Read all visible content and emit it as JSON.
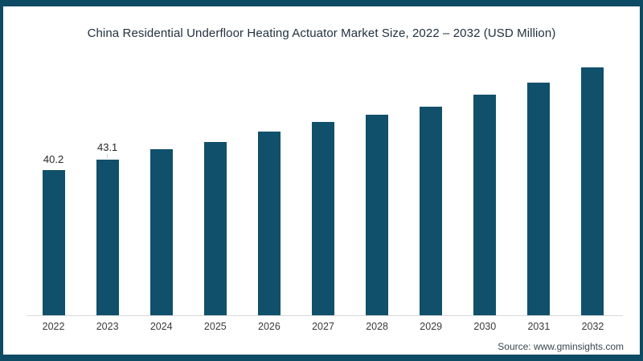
{
  "frame": {
    "border_color": "#0d4a63",
    "background_color": "#ffffff"
  },
  "source_text": "Source: www.gminsights.com",
  "chart_data": {
    "type": "bar",
    "title": "China Residential Underfloor Heating Actuator Market Size, 2022 – 2032 (USD Million)",
    "xlabel": "",
    "ylabel": "USD Million",
    "categories": [
      "2022",
      "2023",
      "2024",
      "2025",
      "2026",
      "2027",
      "2028",
      "2029",
      "2030",
      "2031",
      "2032"
    ],
    "values": [
      40.2,
      43.1,
      46.0,
      48.0,
      50.8,
      53.4,
      55.4,
      57.7,
      60.9,
      64.3,
      68.5
    ],
    "data_labels": [
      {
        "category": "2022",
        "text": "40.2",
        "leader": false
      },
      {
        "category": "2023",
        "text": "43.1",
        "leader": true
      }
    ],
    "bar_color": "#10506b",
    "axis_line_color": "#d9d9d9",
    "grid": false,
    "legend": false,
    "ylim": [
      0,
      69
    ]
  }
}
